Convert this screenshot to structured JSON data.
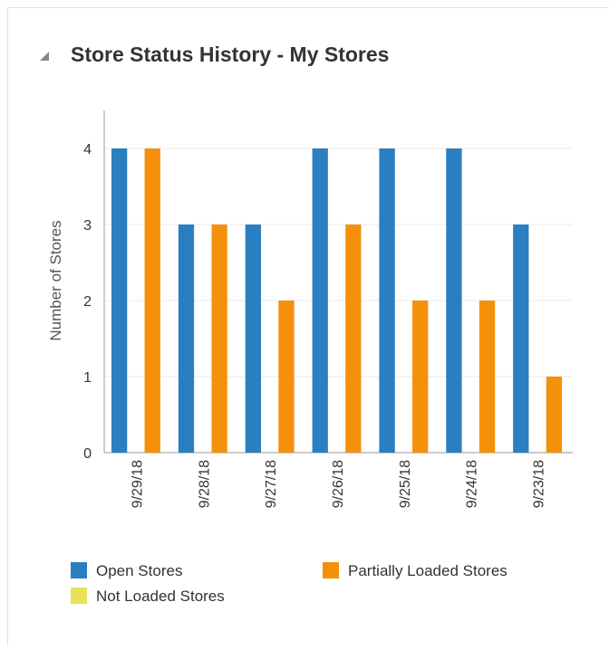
{
  "chart_data": {
    "type": "bar",
    "title": "Store Status History - My Stores",
    "y_label": "Number of Stores",
    "categories": [
      "9/29/18",
      "9/28/18",
      "9/27/18",
      "9/26/18",
      "9/25/18",
      "9/24/18",
      "9/23/18"
    ],
    "series": [
      {
        "name": "Open Stores",
        "color": "#2a7fc1",
        "values": [
          4,
          3,
          3,
          4,
          4,
          4,
          3
        ]
      },
      {
        "name": "Not Loaded Stores",
        "color": "#e9e15a",
        "values": [
          0,
          0,
          0,
          0,
          0,
          0,
          0
        ]
      },
      {
        "name": "Partially Loaded Stores",
        "color": "#f5900a",
        "values": [
          4,
          3,
          2,
          3,
          2,
          2,
          1
        ]
      }
    ],
    "ylim": [
      0,
      4.5
    ],
    "yticks": [
      0,
      1,
      2,
      3,
      4
    ],
    "grid": true
  }
}
